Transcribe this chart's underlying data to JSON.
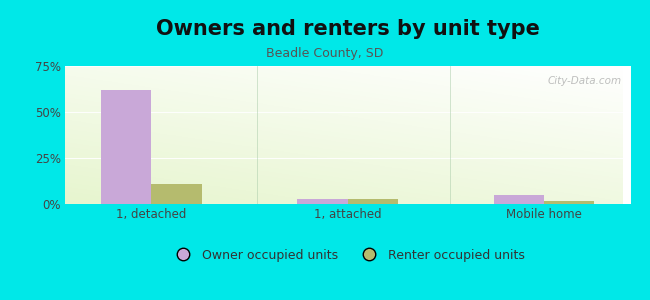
{
  "title": "Owners and renters by unit type",
  "subtitle": "Beadle County, SD",
  "categories": [
    "1, detached",
    "1, attached",
    "Mobile home"
  ],
  "owner_values": [
    62,
    2.5,
    5
  ],
  "renter_values": [
    11,
    2.5,
    1.5
  ],
  "owner_color": "#c9a8d8",
  "renter_color": "#b5bb6e",
  "ylim": [
    0,
    75
  ],
  "yticks": [
    0,
    25,
    50,
    75
  ],
  "yticklabels": [
    "0%",
    "25%",
    "50%",
    "75%"
  ],
  "bg_color": "#00e8e8",
  "title_fontsize": 15,
  "subtitle_fontsize": 9,
  "tick_fontsize": 8.5,
  "legend_fontsize": 9,
  "bar_width": 0.32,
  "watermark": "City-Data.com"
}
